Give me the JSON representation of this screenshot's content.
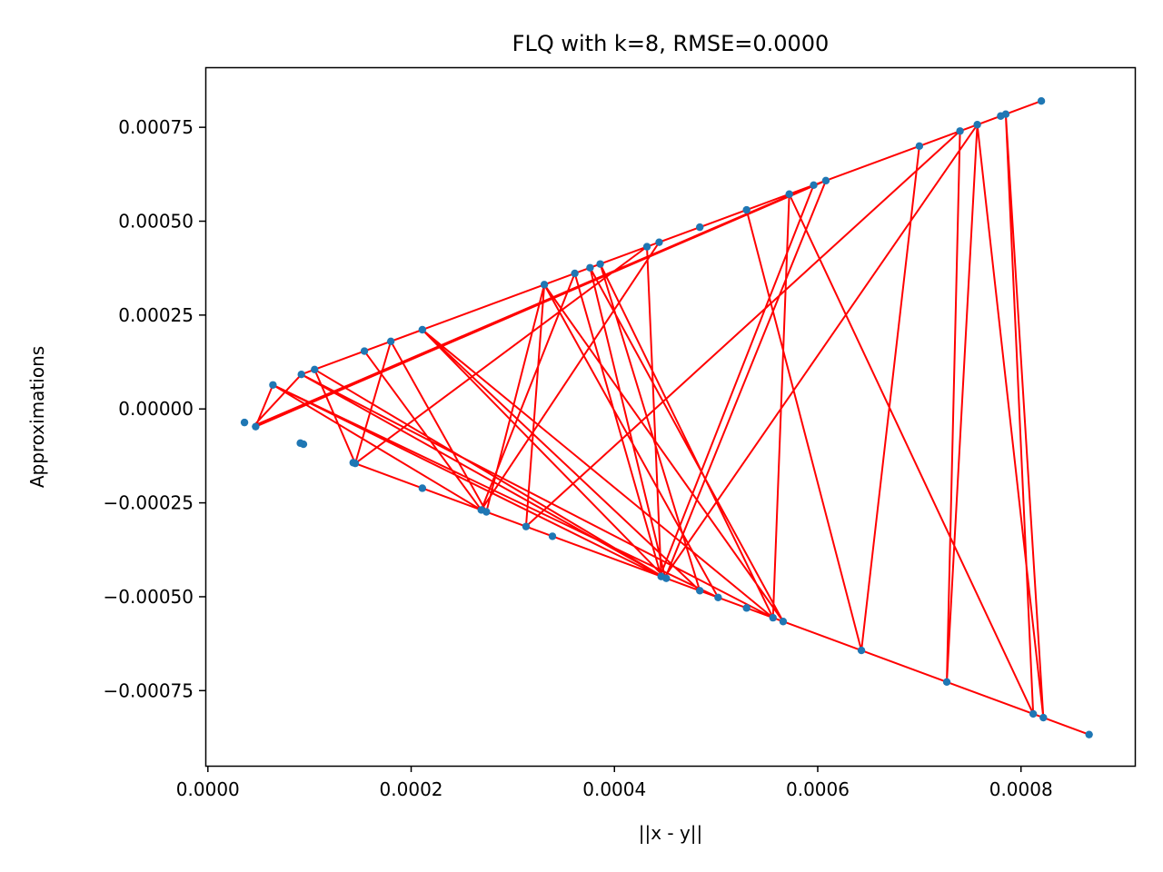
{
  "colors": {
    "background": "#ffffff",
    "point": "#1f77b4",
    "line": "#ff0000",
    "axes": "#000000"
  },
  "chart_data": {
    "type": "scatter",
    "title": "FLQ with k=8, RMSE=0.0000",
    "xlabel": "||x - y||",
    "ylabel": "Approximations",
    "xlim": [
      -2.5e-06,
      0.000912
    ],
    "ylim": [
      -0.00095,
      0.00091
    ],
    "xticks": [
      0.0,
      0.0002,
      0.0004,
      0.0006,
      0.0008
    ],
    "xtick_labels": [
      "0.0000",
      "0.0002",
      "0.0004",
      "0.0006",
      "0.0008"
    ],
    "yticks": [
      0.00075,
      0.0005,
      0.00025,
      0.0,
      -0.00025,
      -0.0005,
      -0.00075
    ],
    "ytick_labels": [
      "0.00075",
      "0.00050",
      "0.00025",
      "0.00000",
      "−0.00025",
      "−0.00050",
      "−0.00075"
    ],
    "grid": false,
    "series": [
      {
        "style": "points",
        "x": [
          0.00082,
          0.000785,
          0.00078,
          0.000757,
          0.00074,
          0.0007,
          0.000608,
          0.000596,
          0.000572,
          0.00053,
          0.000484,
          0.000444,
          0.000432,
          0.000386,
          0.000376,
          0.000361,
          0.000331,
          0.000211,
          0.00018,
          0.000154,
          0.000105,
          9.2e-05,
          6.4e-05,
          4.7e-05,
          3.6e-05,
          9.4e-05,
          9.1e-05,
          0.000145,
          0.000143,
          0.000211,
          0.000269,
          0.000274,
          0.000313,
          0.000339,
          0.000446,
          0.000451,
          0.000484,
          0.000502,
          0.00053,
          0.000556,
          0.000566,
          0.000643,
          0.000727,
          0.000812,
          0.000822,
          0.000867
        ],
        "y": [
          0.00082,
          0.000785,
          0.00078,
          0.000757,
          0.00074,
          0.0007,
          0.000608,
          0.000596,
          0.000572,
          0.00053,
          0.000484,
          0.000444,
          0.000432,
          0.000386,
          0.000376,
          0.000361,
          0.000331,
          0.000211,
          0.00018,
          0.000154,
          0.000105,
          9.2e-05,
          6.4e-05,
          -4.7e-05,
          -3.6e-05,
          -9.4e-05,
          -9.1e-05,
          -0.000145,
          -0.000143,
          -0.000211,
          -0.000269,
          -0.000274,
          -0.000313,
          -0.000339,
          -0.000446,
          -0.000451,
          -0.000484,
          -0.000502,
          -0.00053,
          -0.000556,
          -0.000566,
          -0.000643,
          -0.000727,
          -0.000812,
          -0.000822,
          -0.000867
        ]
      },
      {
        "style": "line",
        "x": [
          0.000867,
          0.00036,
          0.000145,
          0.00018,
          0.000274,
          0.000331,
          0.000566,
          0.000376,
          0.00045,
          0.000608,
          4.7e-05,
          6.4e-05,
          0.000445,
          0.000596,
          4.5e-05,
          9.2e-05,
          0.000556,
          0.000386,
          0.000484,
          0.000211,
          0.00045,
          9.2e-05,
          0.00082,
          0.000757,
          0.000449,
          0.000105,
          0.000145,
          0.000432,
          0.000446,
          0.000361,
          0.000269,
          6.4e-05,
          0.000502,
          0.000331,
          0.000313,
          0.00074,
          0.000727,
          0.000757,
          0.000822,
          0.000785,
          0.000812,
          0.000572,
          0.000556,
          0.000211,
          0.000154,
          0.000269,
          0.000444,
          0.000484,
          0.00053,
          0.000643,
          0.0007
        ],
        "y": [
          -0.000867,
          -0.00036,
          -0.000145,
          0.00018,
          -0.000274,
          0.000331,
          -0.000566,
          0.000376,
          -0.00045,
          0.000608,
          -4.7e-05,
          6.4e-05,
          -0.000445,
          0.000596,
          -4.5e-05,
          9.2e-05,
          -0.000556,
          0.000386,
          -0.000484,
          0.000211,
          -0.00045,
          9.2e-05,
          0.00082,
          0.000757,
          -0.000449,
          0.000105,
          -0.000145,
          0.000432,
          -0.000446,
          0.000361,
          -0.000269,
          6.4e-05,
          -0.000502,
          0.000331,
          -0.000313,
          0.00074,
          -0.000727,
          0.000757,
          -0.000822,
          0.000785,
          -0.000812,
          0.000572,
          -0.000556,
          0.000211,
          0.000154,
          -0.000269,
          0.000444,
          0.000484,
          0.00053,
          -0.000643,
          0.0007
        ]
      }
    ]
  }
}
